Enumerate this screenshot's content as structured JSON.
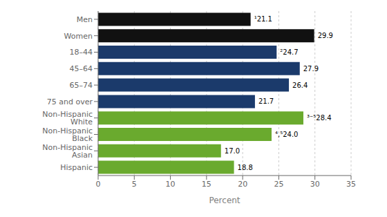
{
  "chart_data": {
    "type": "bar",
    "orientation": "horizontal",
    "categories": [
      "Hispanic",
      "Non-Hispanic Asian",
      "Non-Hispanic Black",
      "Non-Hispanic White",
      "75 and over",
      "65–74",
      "45–64",
      "18–44",
      "Women",
      "Men"
    ],
    "values": [
      18.8,
      17.0,
      24.0,
      28.4,
      21.7,
      26.4,
      27.9,
      24.7,
      29.9,
      21.1
    ],
    "colors": [
      "#6aaa2e",
      "#6aaa2e",
      "#6aaa2e",
      "#6aaa2e",
      "#1b3a6b",
      "#1b3a6b",
      "#1b3a6b",
      "#1b3a6b",
      "#111111",
      "#111111"
    ],
    "value_labels": [
      "18.8",
      "17.0",
      "⁴,⁵24.0",
      "³⁻⁵28.4",
      "21.7",
      "26.4",
      "27.9",
      "²24.7",
      "29.9",
      "¹21.1"
    ],
    "data_labels": true,
    "xlabel": "Percent",
    "xlim": [
      0,
      35
    ],
    "xticks": [
      0,
      5,
      10,
      15,
      20,
      25,
      30,
      35
    ],
    "grid": true
  }
}
